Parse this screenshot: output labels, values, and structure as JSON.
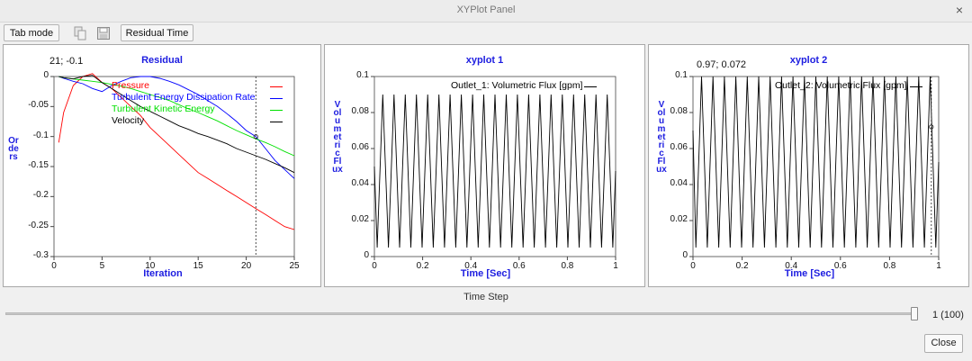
{
  "window": {
    "title": "XYPlot Panel",
    "close_glyph": "×"
  },
  "toolbar": {
    "tab_mode_label": "Tab mode",
    "copy_icon": "copy-icon",
    "save_icon": "save-icon",
    "residual_time_label": "Residual Time"
  },
  "plots": [
    {
      "title": "Residual",
      "coord_readout": "21; -0.1",
      "xlabel": "Iteration",
      "ylabel": "Orders",
      "x_ticks": [
        "0",
        "5",
        "10",
        "15",
        "20",
        "25"
      ],
      "y_ticks": [
        "0",
        "-0.05",
        "-0.1",
        "-0.15",
        "-0.2",
        "-0.25",
        "-0.3"
      ],
      "legend": [
        {
          "name": "Pressure",
          "color": "#ff0000"
        },
        {
          "name": "Turbulent Energy Dissipation Rate",
          "color": "#0000ff"
        },
        {
          "name": "Turbulent Kinetic Energy",
          "color": "#00e000"
        },
        {
          "name": "Velocity",
          "color": "#000000"
        }
      ]
    },
    {
      "title": "xyplot 1",
      "xlabel": "Time [Sec]",
      "ylabel": "Volumetric Flux",
      "x_ticks": [
        "0",
        "0.2",
        "0.4",
        "0.6",
        "0.8",
        "1"
      ],
      "y_ticks": [
        "0.1",
        "0.08",
        "0.06",
        "0.04",
        "0.02",
        "0"
      ],
      "legend": [
        {
          "name": "Outlet_1: Volumetric Flux [gpm]",
          "color": "#000000"
        }
      ]
    },
    {
      "title": "xyplot 2",
      "coord_readout": "0.97; 0.072",
      "xlabel": "Time [Sec]",
      "ylabel": "Volumetric Flux",
      "x_ticks": [
        "0",
        "0.2",
        "0.4",
        "0.6",
        "0.8",
        "1"
      ],
      "y_ticks": [
        "0.1",
        "0.08",
        "0.06",
        "0.04",
        "0.02",
        "0"
      ],
      "legend": [
        {
          "name": "Outlet_2: Volumetric Flux [gpm]",
          "color": "#000000"
        }
      ]
    }
  ],
  "chart_data": [
    {
      "type": "line",
      "title": "Residual",
      "xlabel": "Iteration",
      "ylabel": "Orders",
      "xlim": [
        0,
        25
      ],
      "ylim": [
        -0.3,
        0
      ],
      "grid": false,
      "legend_position": "top-right",
      "cursor": {
        "x": 21,
        "y": -0.1
      },
      "x": [
        0.5,
        1,
        2,
        3,
        4,
        5,
        6,
        7,
        8,
        9,
        10,
        11,
        12,
        13,
        14,
        15,
        16,
        17,
        18,
        19,
        20,
        21,
        22,
        23,
        24,
        25
      ],
      "series": [
        {
          "name": "Pressure",
          "color": "#ff0000",
          "values": [
            -0.11,
            -0.06,
            -0.015,
            0.0,
            0.005,
            -0.01,
            -0.02,
            -0.035,
            -0.05,
            -0.065,
            -0.085,
            -0.1,
            -0.115,
            -0.13,
            -0.145,
            -0.16,
            -0.17,
            -0.18,
            -0.19,
            -0.2,
            -0.21,
            -0.22,
            -0.23,
            -0.24,
            -0.25,
            -0.255
          ]
        },
        {
          "name": "Turbulent Energy Dissipation Rate",
          "color": "#0000ff",
          "values": [
            0.0,
            -0.003,
            -0.008,
            -0.012,
            -0.02,
            -0.025,
            -0.015,
            -0.008,
            -0.002,
            0.0,
            0.0,
            -0.003,
            -0.008,
            -0.014,
            -0.022,
            -0.03,
            -0.04,
            -0.05,
            -0.062,
            -0.075,
            -0.09,
            -0.1,
            -0.12,
            -0.14,
            -0.155,
            -0.17
          ]
        },
        {
          "name": "Turbulent Kinetic Energy",
          "color": "#00e000",
          "values": [
            0.0,
            -0.002,
            -0.004,
            -0.006,
            -0.008,
            -0.01,
            -0.013,
            -0.016,
            -0.02,
            -0.025,
            -0.03,
            -0.035,
            -0.04,
            -0.047,
            -0.054,
            -0.06,
            -0.067,
            -0.074,
            -0.082,
            -0.09,
            -0.097,
            -0.104,
            -0.11,
            -0.117,
            -0.125,
            -0.132
          ]
        },
        {
          "name": "Velocity",
          "color": "#000000",
          "values": [
            0.0,
            -0.002,
            -0.004,
            0.0,
            0.002,
            -0.01,
            -0.02,
            -0.03,
            -0.04,
            -0.05,
            -0.058,
            -0.066,
            -0.074,
            -0.082,
            -0.088,
            -0.095,
            -0.1,
            -0.106,
            -0.112,
            -0.12,
            -0.126,
            -0.132,
            -0.138,
            -0.145,
            -0.152,
            -0.16
          ]
        }
      ]
    },
    {
      "type": "line",
      "title": "xyplot 1",
      "xlabel": "Time [Sec]",
      "ylabel": "Volumetric Flux",
      "xlim": [
        0,
        1
      ],
      "ylim": [
        0,
        0.1
      ],
      "grid": false,
      "legend_position": "top-right",
      "series": [
        {
          "name": "Outlet_1: Volumetric Flux [gpm]",
          "color": "#000000",
          "cycles": 21,
          "y_min": 0.005,
          "y_max": 0.09,
          "start": 0.05
        }
      ]
    },
    {
      "type": "line",
      "title": "xyplot 2",
      "xlabel": "Time [Sec]",
      "ylabel": "Volumetric Flux",
      "xlim": [
        0,
        1
      ],
      "ylim": [
        0,
        0.1
      ],
      "grid": false,
      "legend_position": "top-right",
      "cursor": {
        "x": 0.97,
        "y": 0.072
      },
      "series": [
        {
          "name": "Outlet_2: Volumetric Flux [gpm]",
          "color": "#000000",
          "cycles": 21,
          "y_min": 0.005,
          "y_max": 0.1,
          "start": 0.07
        }
      ]
    }
  ],
  "footer": {
    "time_step_label": "Time Step",
    "slider_value_text": "1 (100)",
    "slider_fraction": 1.0,
    "close_label": "Close"
  }
}
